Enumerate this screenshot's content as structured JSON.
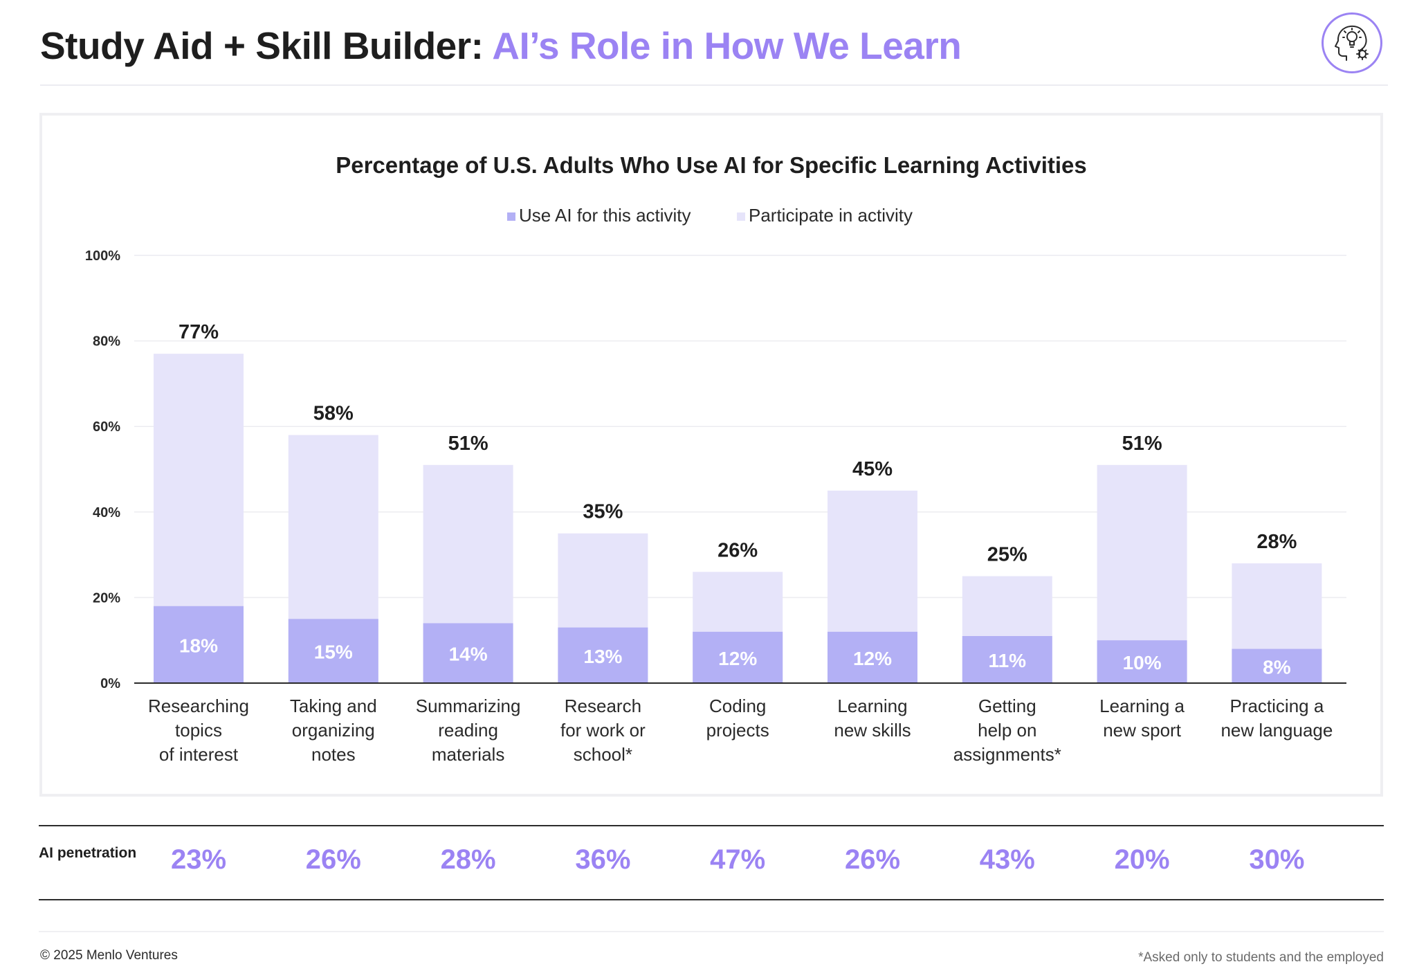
{
  "header": {
    "title_main": "Study Aid + Skill Builder: ",
    "title_accent": "AI’s Role in How We Learn",
    "badge_icon": "lightbulb-head-gear-icon"
  },
  "colors": {
    "accent": "#9b83f3",
    "use_ai": "#b3b0f5",
    "participate": "#e6e4fa"
  },
  "chart_data": {
    "type": "bar",
    "title": "Percentage of U.S. Adults Who Use AI for Specific Learning Activities",
    "stacking": "overlay",
    "categories": [
      [
        "Researching",
        "topics",
        "of interest"
      ],
      [
        "Taking and",
        "organizing",
        "notes"
      ],
      [
        "Summarizing",
        "reading",
        "materials"
      ],
      [
        "Research",
        "for work or",
        "school*"
      ],
      [
        "Coding",
        "projects"
      ],
      [
        "Learning",
        "new skills"
      ],
      [
        "Getting",
        "help on",
        "assignments*"
      ],
      [
        "Learning a",
        "new sport"
      ],
      [
        "Practicing a",
        "new language"
      ]
    ],
    "series": [
      {
        "name": "Participate in activity",
        "values": [
          77,
          58,
          51,
          35,
          26,
          45,
          25,
          51,
          28
        ]
      },
      {
        "name": "Use AI for this activity",
        "values": [
          18,
          15,
          14,
          13,
          12,
          12,
          11,
          10,
          8
        ]
      }
    ],
    "legend": [
      "Use AI for this activity",
      "Participate in activity"
    ],
    "legend_position": "top-center",
    "yticks": [
      "0%",
      "20%",
      "40%",
      "60%",
      "80%",
      "100%"
    ],
    "ylim": [
      0,
      100
    ],
    "grid": true,
    "value_label_suffix": "%"
  },
  "penetration": {
    "label": "AI penetration",
    "values": [
      "23%",
      "26%",
      "28%",
      "36%",
      "47%",
      "26%",
      "43%",
      "20%",
      "30%"
    ]
  },
  "footer": {
    "copyright": "© 2025 Menlo Ventures",
    "note": "*Asked only to students and the employed"
  }
}
